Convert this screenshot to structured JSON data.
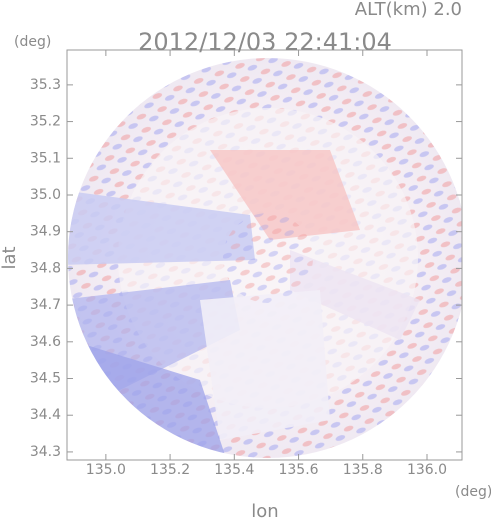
{
  "chart_data": {
    "type": "image",
    "title": "2012/12/03 22:41:04",
    "subtitle": "ALT(km) 2.0",
    "y_unit": "(deg)",
    "x_unit": "(deg)",
    "ylabel": "lat",
    "xlabel": "lon",
    "xlim": [
      134.879,
      136.109
    ],
    "ylim": [
      34.278,
      35.395
    ],
    "xticks": [
      {
        "value": 135,
        "label": "135.0"
      },
      135.2,
      135.4,
      135.6,
      135.8,
      {
        "value": 136,
        "label": "136.0"
      }
    ],
    "yticks": [
      35.3,
      35.2,
      35.1,
      {
        "value": 35,
        "label": "35.0"
      },
      34.9,
      34.8,
      34.7,
      34.6,
      34.5,
      34.4,
      34.3
    ]
  }
}
